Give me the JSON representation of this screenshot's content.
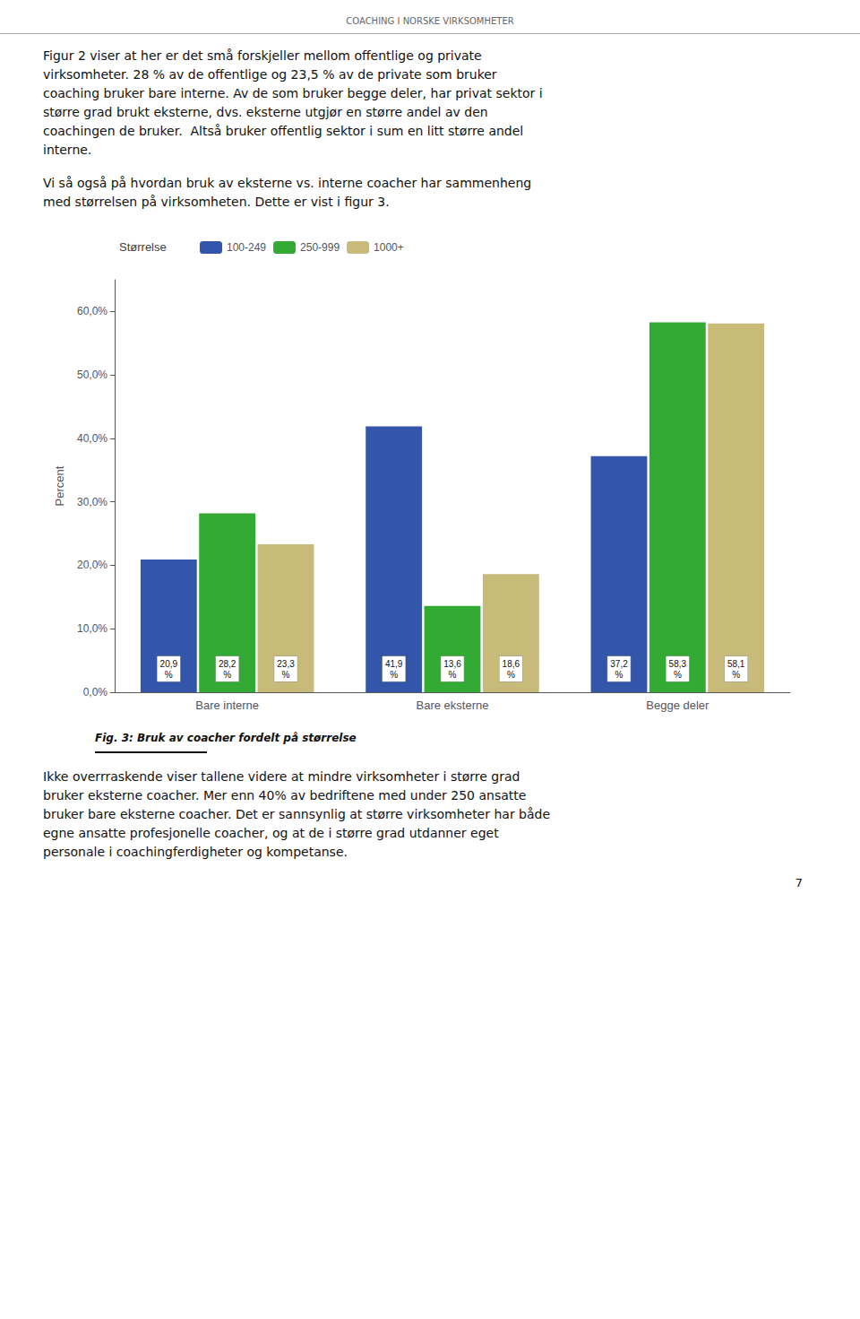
{
  "header_text": "COACHING I NORSKE VIRKSOMHETER",
  "body_text_1": "Figur 2 viser at her er det små forskjeller mellom offentlige og private\nvirksomheter. 28 % av de offentlige og 23,5 % av de private som bruker\ncoaching bruker bare interne. Av de som bruker begge deler, har privat sektor i\nstørre grad brukt eksterne, dvs. eksterne utgjør en større andel av den\ncoachingen de bruker.  Altså bruker offentlig sektor i sum en litt større andel\ninterne.",
  "body_text_2": "Vi så også på hvordan bruk av eksterne vs. interne coacher har sammenheng\nmed størrelsen på virksomheten. Dette er vist i figur 3.",
  "caption": "Fig. 3: Bruk av coacher fordelt på størrelse",
  "body_text_3": "Ikke overrraskende viser tallene videre at mindre virksomheter i større grad\nbruker eksterne coacher. Mer enn 40% av bedriftene med under 250 ansatte\nbruker bare eksterne coacher. Det er sannsynlig at større virksomheter har både\negne ansatte profesjonelle coacher, og at de i større grad utdanner eget\npersonale i coachingferdigheter og kompetanse.",
  "page_number": "7",
  "chart_data": {
    "type": "bar",
    "categories": [
      "Bare interne",
      "Bare eksterne",
      "Begge deler"
    ],
    "series": [
      {
        "name": "100-249",
        "color": "#3355aa",
        "values": [
          20.9,
          41.9,
          37.2
        ],
        "value_labels": [
          "20,9\n%",
          "41,9\n%",
          "37,2\n%"
        ]
      },
      {
        "name": "250-999",
        "color": "#33aa33",
        "values": [
          28.2,
          13.6,
          58.3
        ],
        "value_labels": [
          "28,2\n%",
          "13,6\n%",
          "58,3\n%"
        ]
      },
      {
        "name": "1000+",
        "color": "#c8bb7a",
        "values": [
          23.3,
          18.6,
          58.1
        ],
        "value_labels": [
          "23,3\n%",
          "18,6\n%",
          "58,1\n%"
        ]
      }
    ],
    "ylabel": "Percent",
    "ylim": [
      0,
      65
    ],
    "yticks": [
      {
        "value": 0.0,
        "label": "0,0%"
      },
      {
        "value": 10.0,
        "label": "10,0%"
      },
      {
        "value": 20.0,
        "label": "20,0%"
      },
      {
        "value": 30.0,
        "label": "30,0%"
      },
      {
        "value": 40.0,
        "label": "40,0%"
      },
      {
        "value": 50.0,
        "label": "50,0%"
      },
      {
        "value": 60.0,
        "label": "60,0%"
      }
    ],
    "legend_title": "Størrelse",
    "legend": "upper left",
    "data_labels": true,
    "grid": false
  }
}
